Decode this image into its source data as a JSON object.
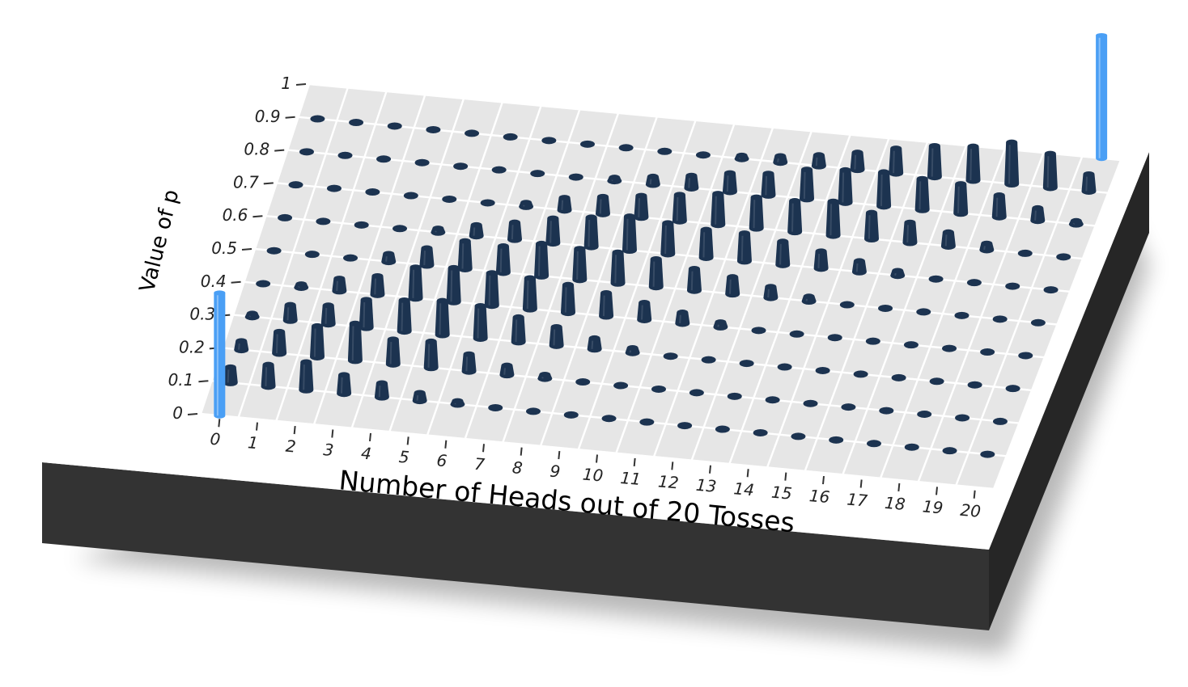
{
  "chart_data": {
    "type": "3d-bar",
    "title": "",
    "xlabel": "Number of Heads out of 20 Tosses",
    "ylabel": "Value of p",
    "x_ticks": [
      "0",
      "1",
      "2",
      "3",
      "4",
      "5",
      "6",
      "7",
      "8",
      "9",
      "10",
      "11",
      "12",
      "13",
      "14",
      "15",
      "16",
      "17",
      "18",
      "19",
      "20"
    ],
    "y_ticks": [
      "0",
      "0.1",
      "0.2",
      "0.3",
      "0.4",
      "0.5",
      "0.6",
      "0.7",
      "0.8",
      "0.9",
      "1"
    ],
    "xlim": [
      0,
      20
    ],
    "ylim": [
      0,
      1
    ],
    "p_values": [
      0.1,
      0.2,
      0.3,
      0.4,
      0.5,
      0.6,
      0.7,
      0.8,
      0.9
    ],
    "bar_heights": [
      [
        0.5,
        0.28,
        0.1,
        0.03,
        0.0,
        0.0,
        0.0,
        0.0,
        0.0
      ],
      [
        0.7,
        0.7,
        0.5,
        0.1,
        0.02,
        0.0,
        0.0,
        0.0,
        0.0
      ],
      [
        0.9,
        1.0,
        0.6,
        0.4,
        0.05,
        0.01,
        0.0,
        0.0,
        0.0
      ],
      [
        0.6,
        1.2,
        0.9,
        0.6,
        0.25,
        0.03,
        0.0,
        0.0,
        0.0
      ],
      [
        0.45,
        0.8,
        1.0,
        1.0,
        0.55,
        0.12,
        0.02,
        0.0,
        0.0
      ],
      [
        0.25,
        0.85,
        1.1,
        1.1,
        0.9,
        0.35,
        0.05,
        0.0,
        0.0
      ],
      [
        0.1,
        0.55,
        1.05,
        1.05,
        0.85,
        0.55,
        0.12,
        0.01,
        0.0
      ],
      [
        0.02,
        0.3,
        0.8,
        1.0,
        1.05,
        0.8,
        0.4,
        0.05,
        0.0
      ],
      [
        0.0,
        0.12,
        0.6,
        0.9,
        1.0,
        0.95,
        0.55,
        0.1,
        0.0
      ],
      [
        0.0,
        0.05,
        0.35,
        0.75,
        1.0,
        1.1,
        0.7,
        0.25,
        0.02
      ],
      [
        0.0,
        0.02,
        0.15,
        0.55,
        0.9,
        1.0,
        0.85,
        0.4,
        0.05
      ],
      [
        0.0,
        0.0,
        0.05,
        0.35,
        0.7,
        0.9,
        1.0,
        0.6,
        0.1
      ],
      [
        0.0,
        0.0,
        0.02,
        0.15,
        0.55,
        0.9,
        1.0,
        0.7,
        0.2
      ],
      [
        0.0,
        0.0,
        0.0,
        0.05,
        0.35,
        0.75,
        1.0,
        0.95,
        0.35
      ],
      [
        0.0,
        0.0,
        0.0,
        0.02,
        0.15,
        0.55,
        1.1,
        1.05,
        0.55
      ],
      [
        0.0,
        0.0,
        0.0,
        0.0,
        0.05,
        0.35,
        0.85,
        1.1,
        0.8
      ],
      [
        0.0,
        0.0,
        0.0,
        0.0,
        0.02,
        0.15,
        0.65,
        1.0,
        1.0
      ],
      [
        0.0,
        0.0,
        0.0,
        0.0,
        0.0,
        0.05,
        0.45,
        0.95,
        1.1
      ],
      [
        0.0,
        0.0,
        0.0,
        0.0,
        0.0,
        0.02,
        0.2,
        0.7,
        1.35
      ],
      [
        0.0,
        0.0,
        0.0,
        0.0,
        0.0,
        0.0,
        0.05,
        0.4,
        1.1
      ],
      [
        0.0,
        0.0,
        0.0,
        0.0,
        0.0,
        0.0,
        0.01,
        0.1,
        0.55
      ]
    ],
    "highlight_bars": [
      {
        "x": 0,
        "p": 0.0,
        "height": 4.0
      },
      {
        "x": 20,
        "p": 1.0,
        "height": 4.0
      }
    ],
    "grid": true,
    "colors": {
      "bar": "#1c3350",
      "highlight": "#4a9ff5",
      "floor": "#e6e6e6",
      "grid": "#ffffff",
      "base_top": "#ffffff",
      "base_side": "#333333",
      "base_side_right": "#262626",
      "background": "#ffffff"
    }
  }
}
